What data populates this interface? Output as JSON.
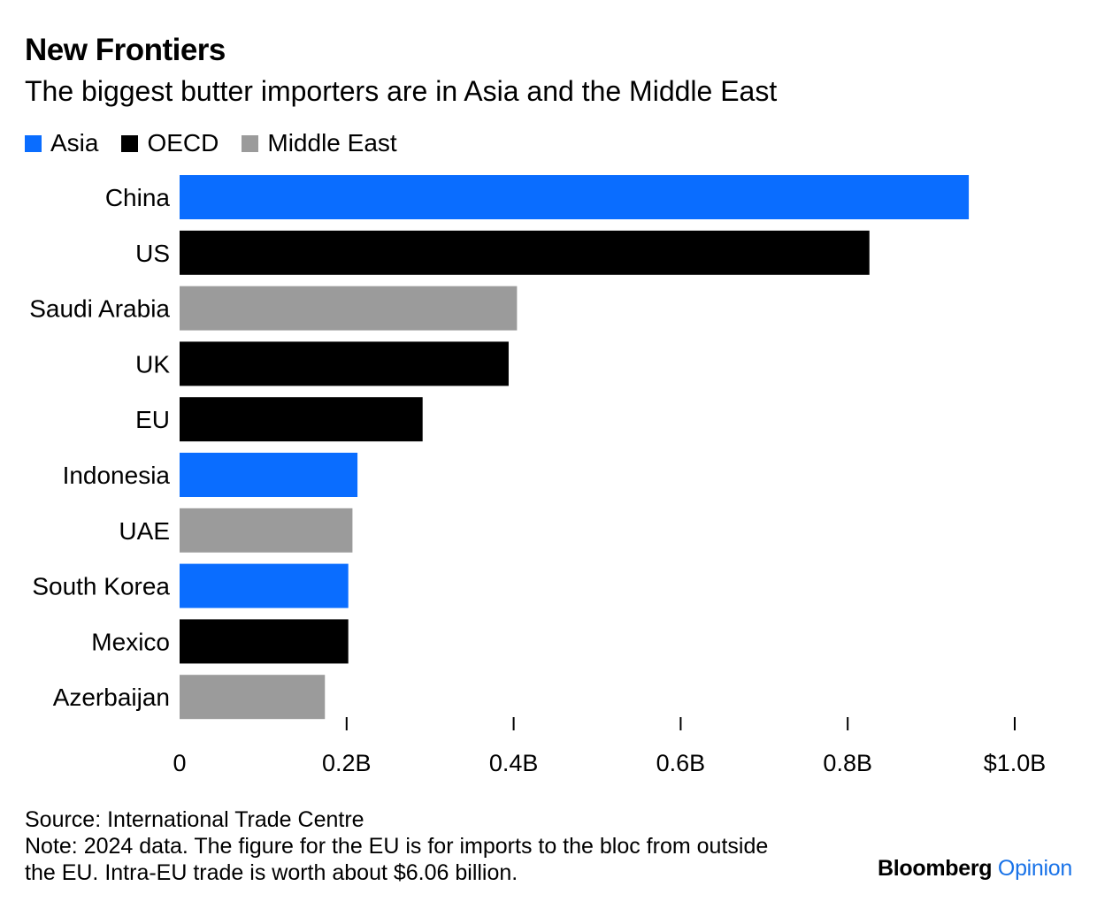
{
  "colors": {
    "Asia": "#0a6dff",
    "OECD": "#000000",
    "Middle East": "#9b9b9b",
    "text": "#000000",
    "brand_accent": "#1a73e8"
  },
  "chart_data": {
    "type": "bar",
    "orientation": "horizontal",
    "title": "New Frontiers",
    "subtitle": "The biggest butter importers are in Asia and the Middle East",
    "legend": [
      {
        "label": "Asia",
        "color": "#0a6dff"
      },
      {
        "label": "OECD",
        "color": "#000000"
      },
      {
        "label": "Middle East",
        "color": "#9b9b9b"
      }
    ],
    "legend_position": "top-left",
    "categories": [
      "China",
      "US",
      "Saudi Arabia",
      "UK",
      "EU",
      "Indonesia",
      "UAE",
      "South Korea",
      "Mexico",
      "Azerbaijan"
    ],
    "groups": [
      "Asia",
      "OECD",
      "Middle East",
      "OECD",
      "OECD",
      "Asia",
      "Middle East",
      "Asia",
      "OECD",
      "Middle East"
    ],
    "values": [
      0.945,
      0.826,
      0.404,
      0.394,
      0.291,
      0.213,
      0.207,
      0.202,
      0.202,
      0.174
    ],
    "value_unit": "billion USD",
    "xlim": [
      0,
      1.0
    ],
    "x_ticks": [
      0,
      0.2,
      0.4,
      0.6,
      0.8,
      1.0
    ],
    "x_tick_labels": [
      "0",
      "0.2B",
      "0.4B",
      "0.6B",
      "0.8B",
      "$1.0B"
    ],
    "grid": false
  },
  "footer": {
    "source": "Source: International Trade Centre",
    "note_line1": "Note: 2024 data. The figure for the EU is for imports to the bloc from outside",
    "note_line2": "the EU. Intra-EU trade is worth about $6.06 billion."
  },
  "brand": {
    "name": "Bloomberg",
    "section": "Opinion"
  }
}
